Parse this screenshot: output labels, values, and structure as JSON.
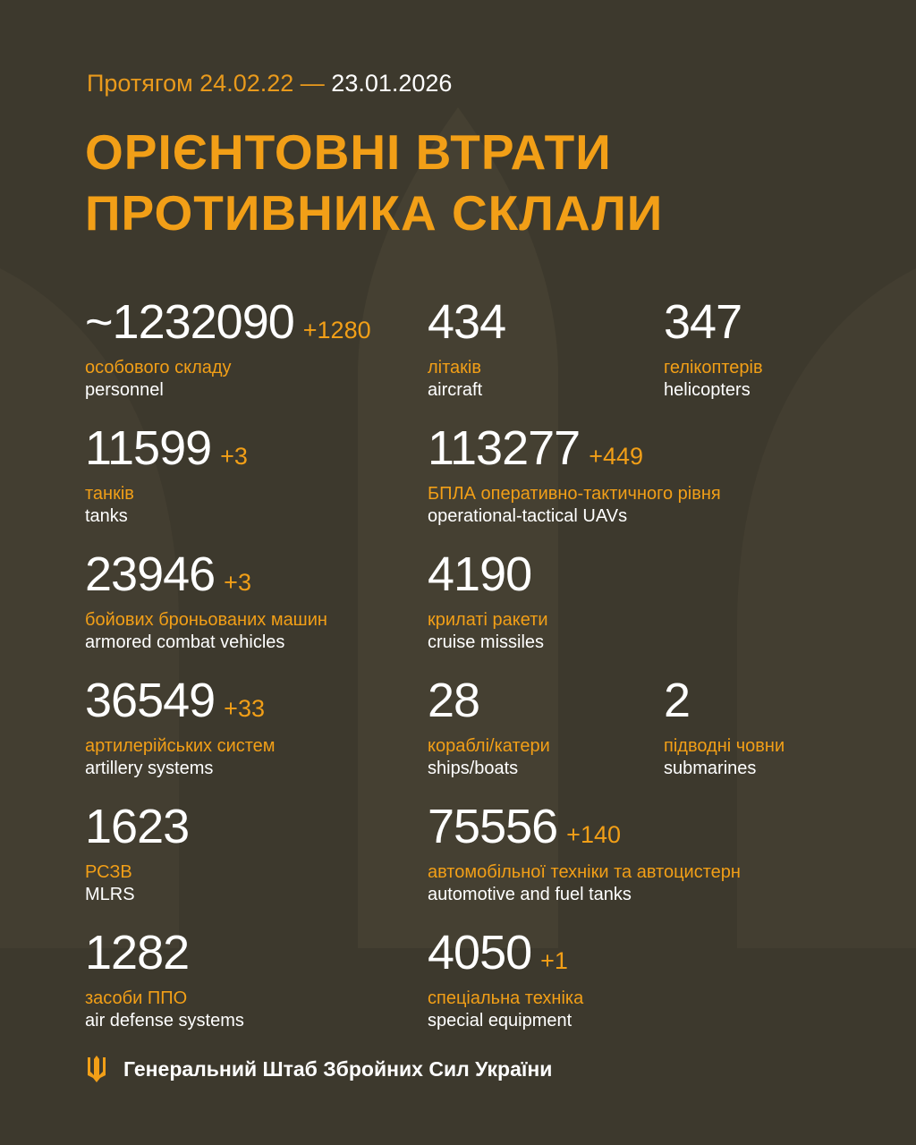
{
  "header": {
    "period_prefix": "Протягом 24.02.22 —",
    "period_end": "23.01.2026",
    "title_line1": "ОРІЄНТОВНІ ВТРАТИ",
    "title_line2": "ПРОТИВНИКА СКЛАЛИ"
  },
  "colors": {
    "background": "#3d392d",
    "accent": "#f29f17",
    "text": "#ffffff"
  },
  "stats": [
    {
      "value": "~1232090",
      "delta": "+1280",
      "ua": "особового складу",
      "en": "personnel"
    },
    {
      "value": "434",
      "delta": "",
      "ua": "літаків",
      "en": "aircraft"
    },
    {
      "value": "347",
      "delta": "",
      "ua": "гелікоптерів",
      "en": "helicopters"
    },
    {
      "value": "11599",
      "delta": "+3",
      "ua": "танків",
      "en": "tanks"
    },
    {
      "value": "113277",
      "delta": "+449",
      "ua": "БПЛА оперативно-тактичного рівня",
      "en": "operational-tactical UAVs"
    },
    {
      "value": "23946",
      "delta": "+3",
      "ua": "бойових броньованих машин",
      "en": "armored combat vehicles"
    },
    {
      "value": "4190",
      "delta": "",
      "ua": "крилаті ракети",
      "en": "cruise missiles"
    },
    {
      "value": "36549",
      "delta": "+33",
      "ua": "артилерійських систем",
      "en": "artillery systems"
    },
    {
      "value": "28",
      "delta": "",
      "ua": "кораблі/катери",
      "en": "ships/boats"
    },
    {
      "value": "2",
      "delta": "",
      "ua": "підводні човни",
      "en": "submarines"
    },
    {
      "value": "1623",
      "delta": "",
      "ua": "РСЗВ",
      "en": "MLRS"
    },
    {
      "value": "75556",
      "delta": "+140",
      "ua": "автомобільної техніки та автоцистерн",
      "en": "automotive and fuel tanks"
    },
    {
      "value": "1282",
      "delta": "",
      "ua": "засоби ППО",
      "en": "air defense systems"
    },
    {
      "value": "4050",
      "delta": "+1",
      "ua": "спеціальна техніка",
      "en": "special equipment"
    }
  ],
  "footer": {
    "icon": "trident-icon",
    "text": "Генеральний Штаб Збройних Сил України"
  }
}
